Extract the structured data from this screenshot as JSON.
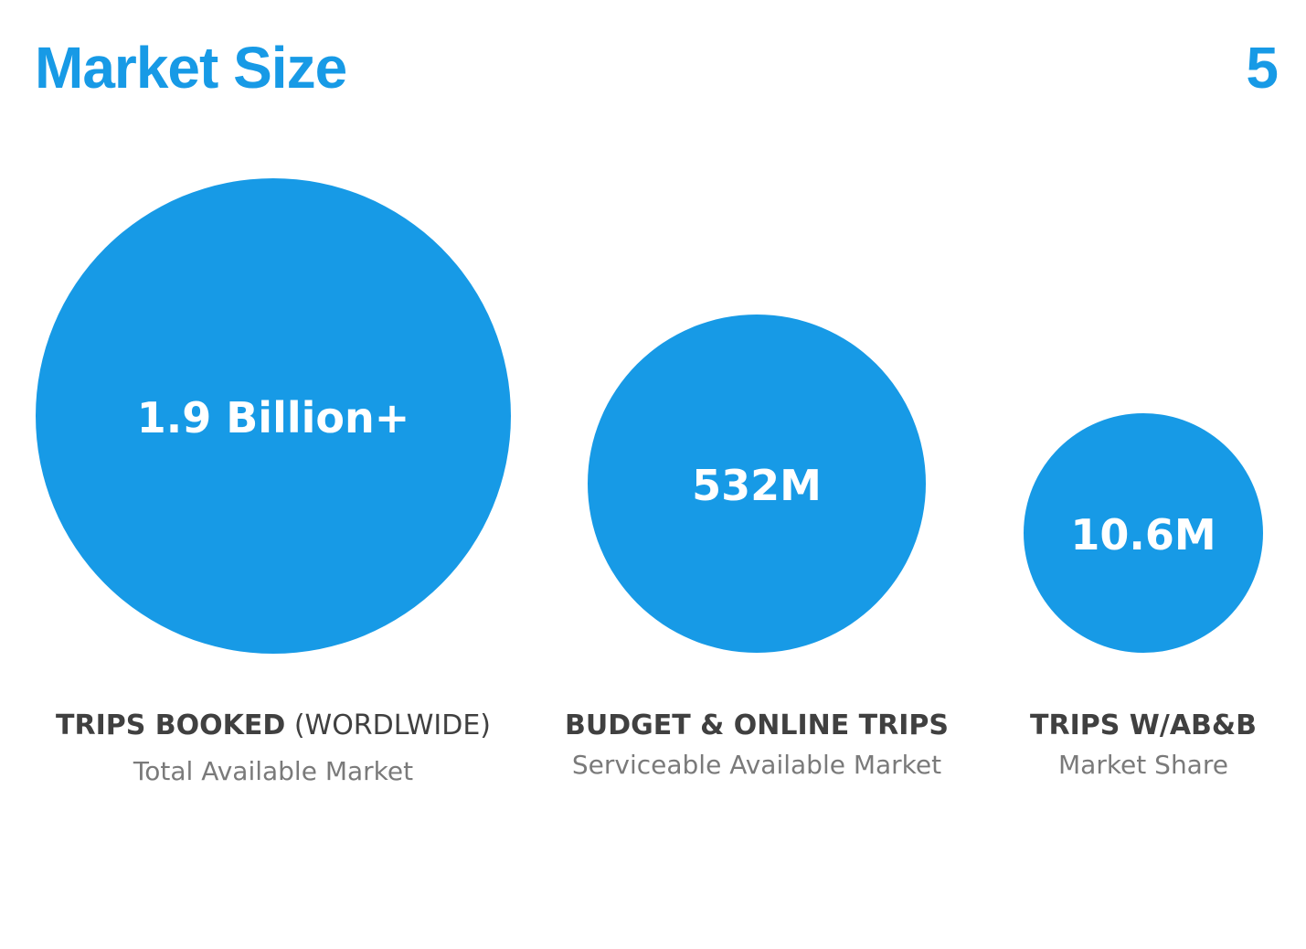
{
  "header": {
    "title": "Market Size",
    "page_number": "5"
  },
  "items": [
    {
      "value": "1.9 Billion+",
      "heading": "TRIPS BOOKED",
      "heading_note": "(WORDLWIDE)",
      "subtitle": "Total Available Market"
    },
    {
      "value": "532M",
      "heading": "BUDGET & ONLINE TRIPS",
      "subtitle": "Serviceable Available Market"
    },
    {
      "value": "10.6M",
      "heading": "TRIPS W/AB&B",
      "subtitle": "Market Share"
    }
  ]
}
